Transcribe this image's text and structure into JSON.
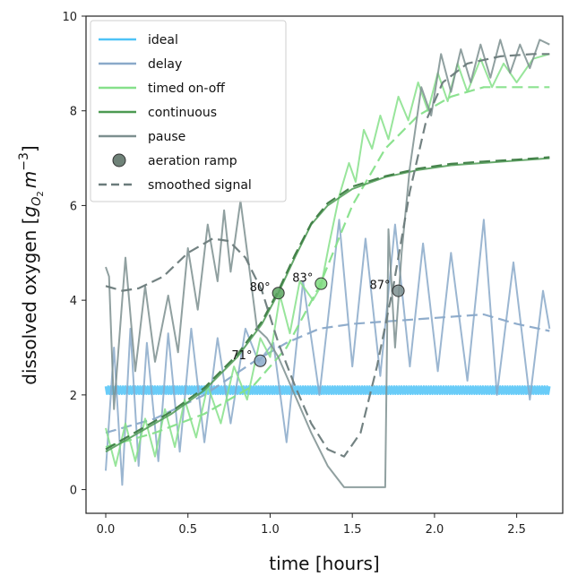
{
  "chart_data": {
    "type": "line",
    "xlabel": "time [hours]",
    "ylabel_parts": [
      "dissolved oxygen [",
      "g",
      "O",
      "2",
      "m",
      "−3",
      "]"
    ],
    "xlim": [
      -0.12,
      2.78
    ],
    "ylim": [
      -0.5,
      10
    ],
    "xticks": [
      0.0,
      0.5,
      1.0,
      1.5,
      2.0,
      2.5
    ],
    "xtick_labels": [
      "0.0",
      "0.5",
      "1.0",
      "1.5",
      "2.0",
      "2.5"
    ],
    "yticks": [
      0,
      2,
      4,
      6,
      8,
      10
    ],
    "ytick_labels": [
      "0",
      "2",
      "4",
      "6",
      "8",
      "10"
    ],
    "legend_position": "top-left",
    "grid": false,
    "legend": [
      {
        "label": "ideal",
        "kind": "line",
        "color": "#4fc3f7"
      },
      {
        "label": "delay",
        "kind": "line",
        "color": "#8aa9c9"
      },
      {
        "label": "timed on-off",
        "kind": "line",
        "color": "#86e08a"
      },
      {
        "label": "continuous",
        "kind": "line",
        "color": "#4c9a52"
      },
      {
        "label": "pause",
        "kind": "line",
        "color": "#7d8f8f"
      },
      {
        "label": "aeration ramp",
        "kind": "marker",
        "color": "#6f8278"
      },
      {
        "label": "smoothed signal",
        "kind": "dash",
        "color": "#6b7b7b"
      }
    ],
    "series": [
      {
        "name": "ideal",
        "color": "#4fc3f7",
        "mean": 2.1,
        "amplitude": 0.08
      },
      {
        "name": "delay",
        "color": "#8aa9c9",
        "points": [
          [
            0,
            0.4
          ],
          [
            0.05,
            3.0
          ],
          [
            0.1,
            0.1
          ],
          [
            0.15,
            3.4
          ],
          [
            0.2,
            0.5
          ],
          [
            0.25,
            3.1
          ],
          [
            0.32,
            0.6
          ],
          [
            0.38,
            3.3
          ],
          [
            0.45,
            0.8
          ],
          [
            0.52,
            3.4
          ],
          [
            0.6,
            1.0
          ],
          [
            0.68,
            3.2
          ],
          [
            0.76,
            1.4
          ],
          [
            0.85,
            3.4
          ],
          [
            0.93,
            2.7
          ],
          [
            1.02,
            3.1
          ],
          [
            1.1,
            1.0
          ],
          [
            1.2,
            4.4
          ],
          [
            1.3,
            2.0
          ],
          [
            1.42,
            5.7
          ],
          [
            1.5,
            2.6
          ],
          [
            1.58,
            5.3
          ],
          [
            1.67,
            2.4
          ],
          [
            1.76,
            5.6
          ],
          [
            1.85,
            2.6
          ],
          [
            1.93,
            5.2
          ],
          [
            2.02,
            2.5
          ],
          [
            2.1,
            5.0
          ],
          [
            2.2,
            2.3
          ],
          [
            2.3,
            5.7
          ],
          [
            2.38,
            2.0
          ],
          [
            2.48,
            4.8
          ],
          [
            2.58,
            1.9
          ],
          [
            2.66,
            4.2
          ],
          [
            2.7,
            3.4
          ]
        ]
      },
      {
        "name": "delay smoothed",
        "color": "#8aa9c9",
        "dashed": true,
        "points": [
          [
            0,
            1.2
          ],
          [
            0.3,
            1.5
          ],
          [
            0.6,
            2.0
          ],
          [
            0.9,
            2.7
          ],
          [
            1.1,
            3.1
          ],
          [
            1.3,
            3.4
          ],
          [
            1.5,
            3.5
          ],
          [
            1.7,
            3.55
          ],
          [
            1.9,
            3.6
          ],
          [
            2.1,
            3.65
          ],
          [
            2.3,
            3.7
          ],
          [
            2.5,
            3.5
          ],
          [
            2.7,
            3.35
          ]
        ]
      },
      {
        "name": "timed on-off",
        "color": "#86e08a",
        "points": [
          [
            0,
            1.3
          ],
          [
            0.06,
            0.5
          ],
          [
            0.12,
            1.4
          ],
          [
            0.18,
            0.6
          ],
          [
            0.24,
            1.5
          ],
          [
            0.3,
            0.7
          ],
          [
            0.36,
            1.7
          ],
          [
            0.42,
            0.9
          ],
          [
            0.48,
            1.9
          ],
          [
            0.55,
            1.1
          ],
          [
            0.62,
            2.2
          ],
          [
            0.7,
            1.4
          ],
          [
            0.78,
            2.6
          ],
          [
            0.86,
            1.9
          ],
          [
            0.94,
            3.2
          ],
          [
            1.0,
            2.8
          ],
          [
            1.06,
            4.1
          ],
          [
            1.12,
            3.3
          ],
          [
            1.18,
            4.4
          ],
          [
            1.26,
            4.0
          ],
          [
            1.31,
            4.3
          ],
          [
            1.36,
            5.2
          ],
          [
            1.42,
            6.2
          ],
          [
            1.48,
            6.9
          ],
          [
            1.52,
            6.5
          ],
          [
            1.57,
            7.6
          ],
          [
            1.62,
            7.2
          ],
          [
            1.67,
            7.9
          ],
          [
            1.72,
            7.4
          ],
          [
            1.78,
            8.3
          ],
          [
            1.84,
            7.8
          ],
          [
            1.9,
            8.6
          ],
          [
            1.96,
            8.0
          ],
          [
            2.02,
            8.8
          ],
          [
            2.08,
            8.2
          ],
          [
            2.14,
            9.0
          ],
          [
            2.2,
            8.4
          ],
          [
            2.28,
            9.1
          ],
          [
            2.35,
            8.5
          ],
          [
            2.42,
            9.0
          ],
          [
            2.5,
            8.6
          ],
          [
            2.6,
            9.1
          ],
          [
            2.7,
            9.2
          ]
        ]
      },
      {
        "name": "timed on-off smoothed",
        "color": "#86e08a",
        "dashed": true,
        "points": [
          [
            0,
            0.9
          ],
          [
            0.3,
            1.2
          ],
          [
            0.6,
            1.6
          ],
          [
            0.9,
            2.2
          ],
          [
            1.1,
            3.0
          ],
          [
            1.3,
            4.3
          ],
          [
            1.5,
            6.0
          ],
          [
            1.7,
            7.2
          ],
          [
            1.9,
            7.9
          ],
          [
            2.1,
            8.3
          ],
          [
            2.3,
            8.5
          ],
          [
            2.5,
            8.5
          ],
          [
            2.7,
            8.5
          ]
        ]
      },
      {
        "name": "continuous",
        "color": "#4c9a52",
        "points": [
          [
            0,
            0.8
          ],
          [
            0.2,
            1.2
          ],
          [
            0.4,
            1.6
          ],
          [
            0.6,
            2.1
          ],
          [
            0.8,
            2.8
          ],
          [
            0.95,
            3.5
          ],
          [
            1.05,
            4.15
          ],
          [
            1.15,
            4.9
          ],
          [
            1.25,
            5.6
          ],
          [
            1.35,
            6.0
          ],
          [
            1.5,
            6.35
          ],
          [
            1.7,
            6.6
          ],
          [
            1.9,
            6.75
          ],
          [
            2.1,
            6.85
          ],
          [
            2.3,
            6.9
          ],
          [
            2.5,
            6.95
          ],
          [
            2.7,
            7.0
          ]
        ]
      },
      {
        "name": "continuous smoothed",
        "color": "#3d7c43",
        "dashed": true,
        "points": [
          [
            0,
            0.85
          ],
          [
            0.2,
            1.25
          ],
          [
            0.4,
            1.65
          ],
          [
            0.6,
            2.15
          ],
          [
            0.8,
            2.85
          ],
          [
            0.95,
            3.55
          ],
          [
            1.05,
            4.2
          ],
          [
            1.15,
            4.95
          ],
          [
            1.25,
            5.62
          ],
          [
            1.35,
            6.05
          ],
          [
            1.5,
            6.4
          ],
          [
            1.7,
            6.62
          ],
          [
            1.9,
            6.78
          ],
          [
            2.1,
            6.88
          ],
          [
            2.3,
            6.93
          ],
          [
            2.5,
            6.97
          ],
          [
            2.7,
            7.02
          ]
        ]
      },
      {
        "name": "pause",
        "color": "#7d8f8f",
        "points": [
          [
            0,
            4.7
          ],
          [
            0.02,
            4.5
          ],
          [
            0.05,
            1.7
          ],
          [
            0.12,
            4.9
          ],
          [
            0.18,
            2.5
          ],
          [
            0.24,
            4.3
          ],
          [
            0.3,
            2.7
          ],
          [
            0.38,
            4.1
          ],
          [
            0.44,
            2.9
          ],
          [
            0.5,
            5.1
          ],
          [
            0.56,
            3.8
          ],
          [
            0.62,
            5.6
          ],
          [
            0.68,
            4.4
          ],
          [
            0.72,
            5.9
          ],
          [
            0.76,
            4.6
          ],
          [
            0.82,
            6.1
          ],
          [
            0.88,
            4.5
          ],
          [
            0.92,
            3.4
          ],
          [
            0.98,
            3.2
          ],
          [
            1.05,
            2.8
          ],
          [
            1.15,
            2.0
          ],
          [
            1.25,
            1.2
          ],
          [
            1.35,
            0.5
          ],
          [
            1.45,
            0.05
          ],
          [
            1.55,
            0.05
          ],
          [
            1.65,
            0.05
          ],
          [
            1.7,
            0.05
          ],
          [
            1.72,
            5.5
          ],
          [
            1.76,
            3.0
          ],
          [
            1.8,
            5.0
          ],
          [
            1.85,
            6.8
          ],
          [
            1.92,
            8.5
          ],
          [
            1.98,
            7.9
          ],
          [
            2.04,
            9.2
          ],
          [
            2.1,
            8.4
          ],
          [
            2.16,
            9.3
          ],
          [
            2.22,
            8.6
          ],
          [
            2.28,
            9.4
          ],
          [
            2.34,
            8.7
          ],
          [
            2.4,
            9.5
          ],
          [
            2.46,
            8.8
          ],
          [
            2.52,
            9.4
          ],
          [
            2.58,
            8.9
          ],
          [
            2.64,
            9.5
          ],
          [
            2.7,
            9.4
          ]
        ]
      },
      {
        "name": "pause smoothed",
        "color": "#6b7b7b",
        "dashed": true,
        "points": [
          [
            0,
            4.3
          ],
          [
            0.1,
            4.2
          ],
          [
            0.2,
            4.25
          ],
          [
            0.35,
            4.5
          ],
          [
            0.5,
            5.0
          ],
          [
            0.65,
            5.3
          ],
          [
            0.75,
            5.25
          ],
          [
            0.85,
            4.9
          ],
          [
            0.95,
            4.2
          ],
          [
            1.05,
            3.1
          ],
          [
            1.15,
            2.2
          ],
          [
            1.25,
            1.4
          ],
          [
            1.35,
            0.85
          ],
          [
            1.45,
            0.7
          ],
          [
            1.55,
            1.2
          ],
          [
            1.65,
            2.6
          ],
          [
            1.75,
            4.3
          ],
          [
            1.85,
            6.3
          ],
          [
            1.95,
            7.8
          ],
          [
            2.05,
            8.6
          ],
          [
            2.2,
            9.0
          ],
          [
            2.4,
            9.15
          ],
          [
            2.6,
            9.2
          ],
          [
            2.7,
            9.2
          ]
        ]
      }
    ],
    "markers": [
      {
        "x": 0.94,
        "y": 2.72,
        "label": "71°",
        "fill": "#8aa9c9"
      },
      {
        "x": 1.05,
        "y": 4.15,
        "label": "80°",
        "fill": "#5aa55f"
      },
      {
        "x": 1.31,
        "y": 4.35,
        "label": "83°",
        "fill": "#7fd97f"
      },
      {
        "x": 1.78,
        "y": 4.2,
        "label": "87°",
        "fill": "#7d8f8f"
      }
    ]
  }
}
